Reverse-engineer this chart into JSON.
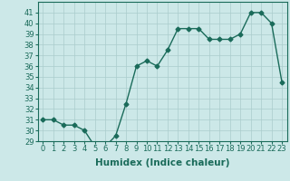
{
  "x": [
    0,
    1,
    2,
    3,
    4,
    5,
    6,
    7,
    8,
    9,
    10,
    11,
    12,
    13,
    14,
    15,
    16,
    17,
    18,
    19,
    20,
    21,
    22,
    23
  ],
  "y": [
    31,
    31,
    30.5,
    30.5,
    30,
    28.5,
    28.5,
    29.5,
    32.5,
    36,
    36.5,
    36,
    37.5,
    39.5,
    39.5,
    39.5,
    38.5,
    38.5,
    38.5,
    39,
    41,
    41,
    40,
    34.5
  ],
  "line_color": "#1a6b5a",
  "marker": "D",
  "markersize": 2.5,
  "linewidth": 1.0,
  "bg_color": "#cce8e8",
  "grid_color": "#aacccc",
  "xlabel": "Humidex (Indice chaleur)",
  "ylim": [
    29,
    42
  ],
  "xlim": [
    -0.5,
    23.5
  ],
  "yticks": [
    29,
    30,
    31,
    32,
    33,
    34,
    35,
    36,
    37,
    38,
    39,
    40,
    41
  ],
  "xticks": [
    0,
    1,
    2,
    3,
    4,
    5,
    6,
    7,
    8,
    9,
    10,
    11,
    12,
    13,
    14,
    15,
    16,
    17,
    18,
    19,
    20,
    21,
    22,
    23
  ],
  "tick_fontsize": 6,
  "label_fontsize": 7.5
}
